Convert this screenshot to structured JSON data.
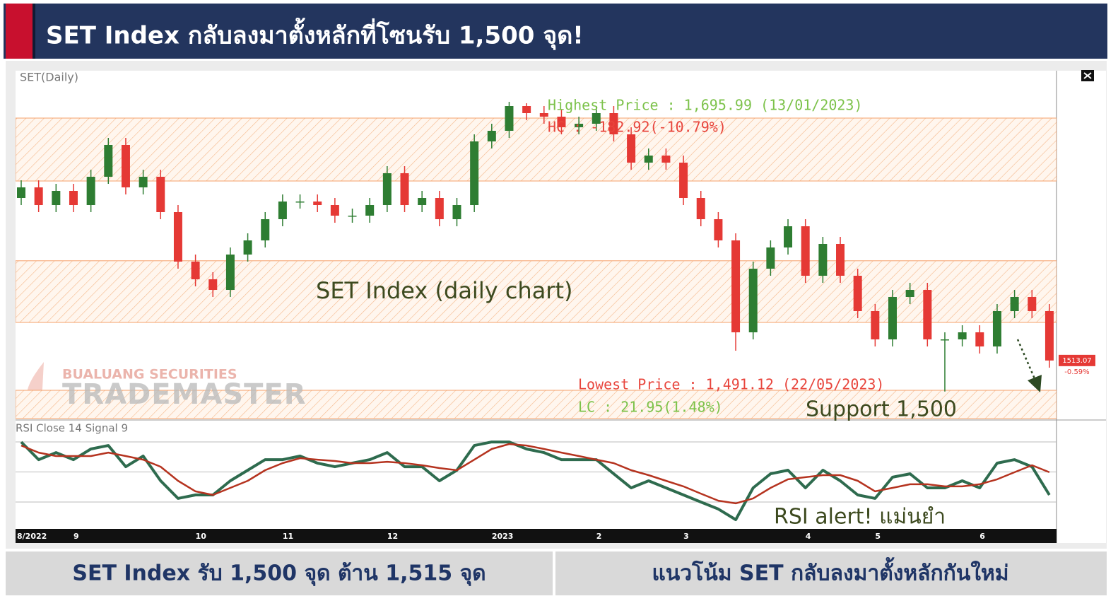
{
  "header": {
    "title": "SET Index กลับลงมาตั้งหลักที่โซนรับ 1,500 จุด!"
  },
  "chart_data": {
    "type": "candlestick",
    "title": "SET(Daily)",
    "categories": [
      "8/2022",
      null,
      null,
      "9",
      null,
      null,
      null,
      null,
      null,
      null,
      "10",
      null,
      null,
      null,
      null,
      "11",
      null,
      null,
      null,
      null,
      null,
      "12",
      null,
      null,
      null,
      null,
      null,
      "2023",
      null,
      null,
      null,
      null,
      null,
      "2",
      null,
      null,
      null,
      null,
      "3",
      null,
      null,
      null,
      null,
      null,
      null,
      "4",
      null,
      null,
      null,
      "5",
      null,
      null,
      null,
      null,
      null,
      "6",
      null,
      null,
      null,
      null
    ],
    "open": [
      1628,
      1635.5,
      1623,
      1633,
      1623,
      1643,
      1665.5,
      1635.5,
      1643,
      1618,
      1583,
      1570.5,
      1563,
      1588,
      1598,
      1613,
      1625.5,
      1625.5,
      1623,
      1615.5,
      1615.5,
      1623,
      1645.5,
      1623,
      1628,
      1613,
      1623,
      1668,
      1675.5,
      1693,
      1688,
      1685.5,
      1678,
      1680.5,
      1688,
      1673,
      1653,
      1658,
      1653,
      1628,
      1613,
      1598,
      1533,
      1578,
      1593,
      1608,
      1573,
      1595.5,
      1573,
      1548,
      1528,
      1558,
      1563,
      1528,
      1528,
      1533,
      1523,
      1548,
      1558,
      1548
    ],
    "high": [
      1640.5,
      1640.5,
      1638,
      1638,
      1648,
      1670.5,
      1670.5,
      1648,
      1648,
      1623,
      1588,
      1575.5,
      1593,
      1603,
      1618,
      1630.5,
      1630.5,
      1630.5,
      1628,
      1620.5,
      1628,
      1650.5,
      1650.5,
      1633,
      1633,
      1628,
      1673,
      1680.5,
      1695.99,
      1695,
      1693,
      1690.5,
      1685.5,
      1693,
      1693,
      1678,
      1663,
      1663,
      1658,
      1633,
      1618,
      1603,
      1583,
      1598,
      1613,
      1613,
      1600.5,
      1600.5,
      1578,
      1553,
      1563,
      1568,
      1568,
      1533,
      1538,
      1538,
      1553,
      1563,
      1563,
      1553
    ],
    "low": [
      1623,
      1618,
      1618,
      1618,
      1618,
      1638,
      1630.5,
      1630.5,
      1613,
      1578,
      1565.5,
      1558,
      1558,
      1583,
      1593,
      1608,
      1620.5,
      1618,
      1610.5,
      1610.5,
      1610.5,
      1618,
      1618,
      1618,
      1608,
      1608,
      1618,
      1663,
      1670.5,
      1683,
      1680.5,
      1673,
      1673,
      1675.5,
      1668,
      1648,
      1648,
      1648,
      1623,
      1608,
      1593,
      1520,
      1528,
      1573,
      1588,
      1568,
      1568,
      1568,
      1543,
      1523,
      1523,
      1553,
      1523,
      1491.12,
      1523,
      1518,
      1518,
      1543,
      1543,
      1508
    ],
    "close": [
      1635.5,
      1623,
      1633,
      1623,
      1643,
      1665.5,
      1635.5,
      1643,
      1618,
      1583,
      1570.5,
      1563,
      1588,
      1598,
      1613,
      1625.5,
      1625.5,
      1623,
      1615.5,
      1615.5,
      1623,
      1645.5,
      1623,
      1628,
      1613,
      1623,
      1668,
      1675.5,
      1693,
      1688,
      1685.5,
      1678,
      1680.5,
      1688,
      1673,
      1653,
      1658,
      1653,
      1628,
      1613,
      1598,
      1533,
      1578,
      1593,
      1608,
      1573,
      1595.5,
      1573,
      1548,
      1528,
      1558,
      1563,
      1528,
      1528,
      1533,
      1523,
      1548,
      1558,
      1548,
      1513.07
    ],
    "up_color": "#2e7d32",
    "down_color": "#e53935",
    "ylim": [
      1472,
      1718
    ],
    "zones": [
      [
        1640,
        1684.5
      ],
      [
        1540,
        1583.6
      ],
      [
        1472,
        1492
      ]
    ],
    "last_price": 1513.07,
    "last_change": "-0.59%",
    "annotations": [
      {
        "text": "Highest Price : 1,695.99 (13/01/2023)",
        "color": "#7cc24a"
      },
      {
        "text": "HC : -182.92(-10.79%)",
        "color": "#e8453c"
      },
      {
        "text": "Lowest Price : 1,491.12 (22/05/2023)",
        "color": "#e8453c"
      },
      {
        "text": "LC : 21.95(1.48%)",
        "color": "#7cc24a"
      },
      {
        "text": "SET Index (daily chart)",
        "color": "#3d4a1f"
      },
      {
        "text": "Support 1,500",
        "color": "#3d4a1f"
      },
      {
        "text": "RSI alert! แม่นยำ",
        "color": "#3d4a1f"
      }
    ],
    "watermark": [
      "BUALUANG SECURITIES",
      "TRADEMASTER"
    ],
    "rsi": {
      "title": "RSI Close 14 Signal 9",
      "ylim": [
        13.5,
        81.8
      ],
      "levels": [
        30,
        50,
        70
      ],
      "series": [
        {
          "color": "#2e6b4e",
          "values": [
            70,
            58.2,
            62.9,
            58.2,
            65.3,
            67.6,
            53.5,
            60.6,
            44.1,
            32.4,
            34.7,
            34.7,
            44.1,
            51.2,
            58.2,
            58.2,
            60.6,
            55.9,
            53.5,
            55.9,
            58.2,
            62.9,
            53.5,
            53.5,
            44.1,
            51.2,
            67.6,
            70,
            70,
            65.3,
            62.9,
            58.2,
            58.2,
            58.2,
            48.8,
            39.4,
            44.1,
            39.4,
            34.7,
            30,
            25.3,
            18.2,
            39.4,
            48.8,
            51.2,
            39.4,
            51.2,
            44.1,
            34.7,
            32.4,
            46.5,
            48.8,
            39.4,
            39.4,
            44.1,
            39.4,
            55.9,
            58.2,
            53.5,
            34.7
          ]
        },
        {
          "color": "#b5331f",
          "values": [
            67.6,
            62.9,
            60.6,
            60.6,
            60.6,
            62.9,
            60.6,
            58.2,
            53.5,
            44.1,
            37.1,
            34.7,
            39.4,
            44.1,
            51.2,
            55.9,
            59.2,
            58.2,
            57.3,
            55.9,
            55.9,
            56.8,
            55.9,
            54.5,
            52.6,
            51.2,
            58.2,
            65.3,
            68.6,
            67.6,
            65.3,
            62.9,
            60.6,
            58.2,
            55.9,
            51.2,
            47.9,
            44.1,
            40.4,
            35.6,
            30.9,
            29.1,
            32.4,
            39.4,
            45.1,
            46.5,
            47.9,
            47.9,
            44.1,
            37.1,
            39.4,
            41.8,
            41.8,
            40.4,
            40.4,
            41.8,
            45.1,
            49.8,
            54.5,
            49.8
          ]
        }
      ]
    }
  },
  "footer": {
    "left": "SET Index รับ 1,500 จุด ต้าน 1,515 จุด",
    "right": "แนวโน้ม SET กลับลงมาตั้งหลักกันใหม่"
  }
}
